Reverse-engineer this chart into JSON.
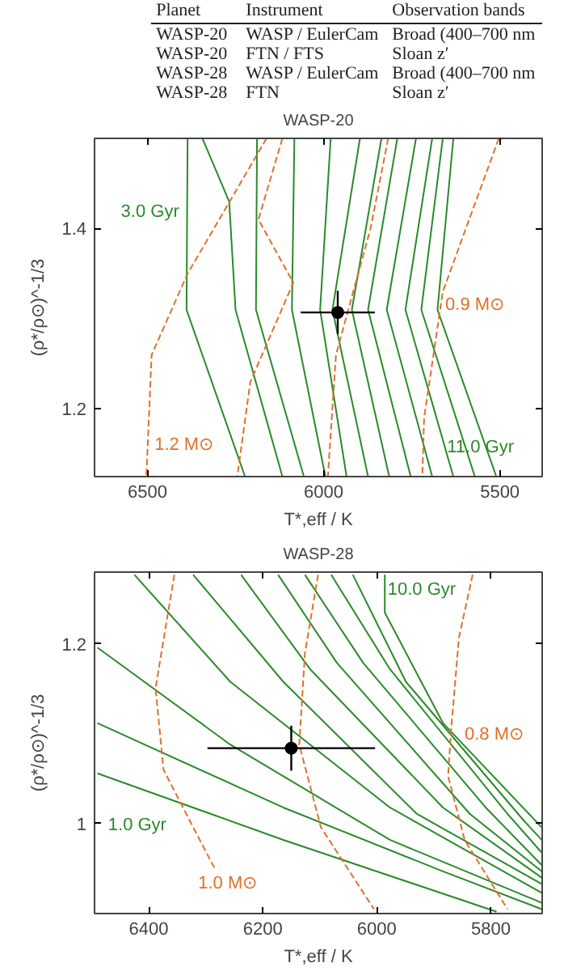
{
  "chart_data": [
    {
      "type": "other",
      "annotations": [
        "Planet",
        "Instrument",
        "Observation bands",
        "WASP-20",
        "WASP / EulerCam",
        "Broad (400–700 nm",
        "WASP-20",
        "FTN / FTS",
        "Sloan z′",
        "WASP-28",
        "WASP / EulerCam",
        "Broad (400–700 nm",
        "WASP-28",
        "FTN",
        "Sloan z′"
      ]
    },
    {
      "type": "line",
      "title": "WASP-20",
      "xlabel": "T*,eff / K",
      "ylabel": "(ρ*/ρ⊙)^-1/3",
      "xlim": [
        6650,
        5380
      ],
      "ylim": [
        1.125,
        1.5
      ],
      "xticks": [
        6500,
        6000,
        5500
      ],
      "yticks": [
        1.2,
        1.4
      ],
      "grid": false,
      "line_style": "solid",
      "series": [
        {
          "color": "#2a8a2a",
          "x": [
            6386,
            6389,
            6223
          ],
          "values": [
            1.5,
            1.31,
            1.125
          ]
        },
        {
          "color": "#2a8a2a",
          "x": [
            6344,
            6268,
            6250,
            6117
          ],
          "values": [
            1.5,
            1.43,
            1.31,
            1.125
          ]
        },
        {
          "color": "#2a8a2a",
          "x": [
            6189,
            6192,
            6056
          ],
          "values": [
            1.5,
            1.31,
            1.125
          ]
        },
        {
          "color": "#2a8a2a",
          "x": [
            6083,
            6090,
            5995
          ],
          "values": [
            1.5,
            1.31,
            1.125
          ]
        },
        {
          "color": "#2a8a2a",
          "x": [
            5980,
            6010,
            5935
          ],
          "values": [
            1.5,
            1.31,
            1.125
          ]
        },
        {
          "color": "#2a8a2a",
          "x": [
            5897,
            5975,
            5874
          ],
          "values": [
            1.5,
            1.31,
            1.125
          ]
        },
        {
          "color": "#2a8a2a",
          "x": [
            5836,
            5920,
            5814
          ],
          "values": [
            1.5,
            1.31,
            1.125
          ]
        },
        {
          "color": "#2a8a2a",
          "x": [
            5791,
            5874,
            5753
          ],
          "values": [
            1.5,
            1.31,
            1.125
          ]
        },
        {
          "color": "#2a8a2a",
          "x": [
            5738,
            5821,
            5692
          ],
          "values": [
            1.5,
            1.31,
            1.125
          ]
        },
        {
          "color": "#2a8a2a",
          "x": [
            5692,
            5768,
            5632
          ],
          "values": [
            1.5,
            1.31,
            1.125
          ]
        },
        {
          "color": "#2a8a2a",
          "x": [
            5662,
            5723,
            5571
          ],
          "values": [
            1.5,
            1.31,
            1.125
          ]
        },
        {
          "color": "#2a8a2a",
          "x": [
            5632,
            5677,
            5510
          ],
          "values": [
            1.5,
            1.31,
            1.125
          ]
        },
        {
          "color": "#e0702a",
          "line_style": "dashed",
          "x": [
            6162,
            6386,
            6488,
            6503
          ],
          "values": [
            1.5,
            1.35,
            1.26,
            1.125
          ]
        },
        {
          "color": "#e0702a",
          "line_style": "dashed",
          "x": [
            6117,
            6185,
            6086,
            6208,
            6245
          ],
          "values": [
            1.5,
            1.41,
            1.34,
            1.23,
            1.125
          ]
        },
        {
          "color": "#e0702a",
          "line_style": "dashed",
          "x": [
            5817,
            5867,
            5965,
            5988
          ],
          "values": [
            1.5,
            1.4,
            1.26,
            1.125
          ]
        },
        {
          "color": "#e0702a",
          "line_style": "dashed",
          "x": [
            5503,
            5662,
            5715,
            5720
          ],
          "values": [
            1.5,
            1.33,
            1.19,
            1.125
          ]
        },
        {
          "type": "scatter",
          "marker": "circle",
          "color": "#000000",
          "x": [
            5960
          ],
          "values": [
            1.307
          ],
          "errors": [
            0.024
          ],
          "xerrors": [
            105
          ]
        }
      ],
      "annotations": [
        {
          "text": "3.0 Gyr",
          "x": 6387,
          "y": 1.418
        },
        {
          "text": "0.9 M⊙",
          "x": 5655,
          "y": 1.315
        },
        {
          "text": "1.2 M⊙",
          "x": 6480,
          "y": 1.16
        },
        {
          "text": "11.0 Gyr",
          "x": 5650,
          "y": 1.157
        }
      ]
    },
    {
      "type": "line",
      "title": "WASP-28",
      "xlabel": "T*,eff / K",
      "ylabel": "(ρ*/ρ⊙)^-1/3",
      "xlim": [
        6495,
        5710
      ],
      "ylim": [
        0.9,
        1.28
      ],
      "xticks": [
        6400,
        6200,
        6000,
        5800
      ],
      "yticks": [
        1,
        1.2
      ],
      "grid": false,
      "line_style": "solid",
      "series": [
        {
          "color": "#2a8a2a",
          "x": [
            6490,
            6164,
            5790
          ],
          "values": [
            1.056,
            0.982,
            0.902
          ]
        },
        {
          "color": "#2a8a2a",
          "x": [
            6490,
            6164,
            5884,
            5711
          ],
          "values": [
            1.112,
            1.018,
            0.947,
            0.905
          ]
        },
        {
          "color": "#2a8a2a",
          "x": [
            6490,
            6257,
            5977,
            5711
          ],
          "values": [
            1.196,
            1.088,
            0.982,
            0.912
          ]
        },
        {
          "color": "#2a8a2a",
          "x": [
            6425,
            6257,
            5977,
            5711
          ],
          "values": [
            1.277,
            1.158,
            1.018,
            0.923
          ]
        },
        {
          "color": "#2a8a2a",
          "x": [
            6322,
            6164,
            5930,
            5711
          ],
          "values": [
            1.277,
            1.158,
            1.011,
            0.933
          ]
        },
        {
          "color": "#2a8a2a",
          "x": [
            6238,
            6117,
            5884,
            5711
          ],
          "values": [
            1.277,
            1.172,
            1.018,
            0.94
          ]
        },
        {
          "color": "#2a8a2a",
          "x": [
            6173,
            6070,
            5837,
            5711
          ],
          "values": [
            1.277,
            1.179,
            1.011,
            0.947
          ]
        },
        {
          "color": "#2a8a2a",
          "x": [
            6126,
            6024,
            5809,
            5711
          ],
          "values": [
            1.277,
            1.179,
            1.018,
            0.954
          ]
        },
        {
          "color": "#2a8a2a",
          "x": [
            6080,
            5977,
            5771,
            5711
          ],
          "values": [
            1.277,
            1.172,
            1.011,
            0.968
          ]
        },
        {
          "color": "#2a8a2a",
          "x": [
            6042,
            5949,
            5743,
            5711
          ],
          "values": [
            1.277,
            1.158,
            1.004,
            0.982
          ]
        },
        {
          "color": "#2a8a2a",
          "x": [
            5986,
            5986,
            5884,
            5711
          ],
          "values": [
            1.277,
            1.235,
            1.112,
            0.996
          ]
        },
        {
          "color": "#e0702a",
          "line_style": "dashed",
          "x": [
            6355,
            6388,
            6374,
            6322,
            6285
          ],
          "values": [
            1.277,
            1.151,
            1.06,
            0.996,
            0.951
          ]
        },
        {
          "color": "#e0702a",
          "line_style": "dashed",
          "x": [
            6103,
            6126,
            6136,
            6098,
            6005
          ],
          "values": [
            1.277,
            1.19,
            1.088,
            0.996,
            0.905
          ]
        },
        {
          "color": "#e0702a",
          "line_style": "dashed",
          "x": [
            5832,
            5856,
            5870,
            5875,
            5846,
            5771
          ],
          "values": [
            1.277,
            1.207,
            1.102,
            1.053,
            0.982,
            0.905
          ]
        },
        {
          "type": "scatter",
          "marker": "circle",
          "color": "#000000",
          "x": [
            6150
          ],
          "values": [
            1.084
          ],
          "errors": [
            0.025
          ],
          "xerrors": [
            147
          ]
        }
      ],
      "annotations": [
        {
          "text": "10.0 Gyr",
          "x": 5981,
          "y": 1.26
        },
        {
          "text": "0.8 M⊙",
          "x": 5846,
          "y": 1.099
        },
        {
          "text": "1.0 Gyr",
          "x": 6440,
          "y": 1.045
        },
        {
          "text": "1.0 M⊙",
          "x": 6285,
          "y": 0.951
        }
      ]
    }
  ]
}
